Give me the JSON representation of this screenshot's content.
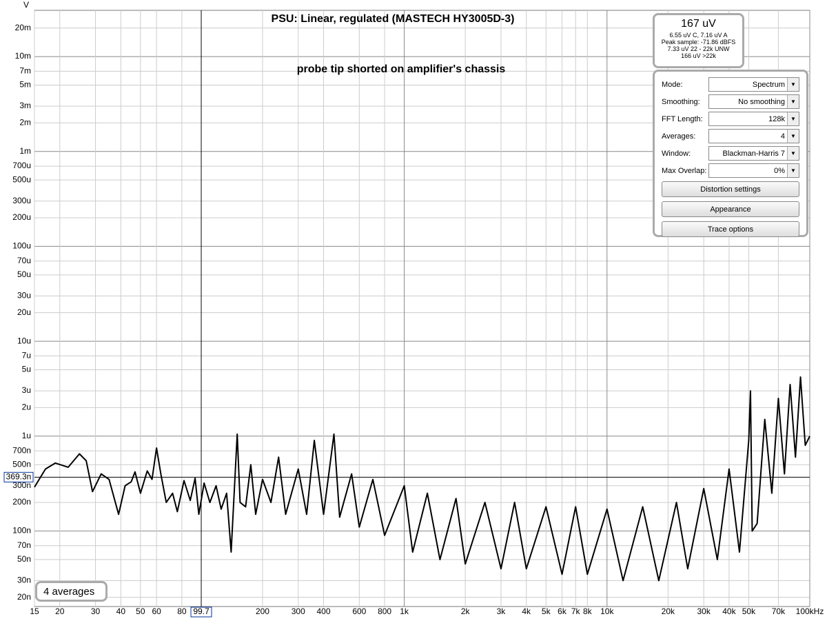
{
  "chart_data": {
    "type": "line",
    "title": "PSU: Linear, regulated (MASTECH HY3005D-3)",
    "annotation": "probe tip shorted on amplifier's chassis",
    "y_axis_label": "V",
    "log_x": true,
    "log_y": true,
    "grid": true,
    "color": "#000000",
    "xlim": [
      15,
      100000
    ],
    "ylim": [
      1.6e-08,
      0.0307
    ],
    "xticks": [
      15,
      20,
      30,
      40,
      50,
      60,
      80,
      200,
      300,
      400,
      600,
      800,
      {
        "value": 1000,
        "label": "1k"
      },
      {
        "value": 2000,
        "label": "2k"
      },
      {
        "value": 3000,
        "label": "3k"
      },
      {
        "value": 4000,
        "label": "4k"
      },
      {
        "value": 5000,
        "label": "5k"
      },
      {
        "value": 6000,
        "label": "6k"
      },
      {
        "value": 7000,
        "label": "7k"
      },
      {
        "value": 8000,
        "label": "8k"
      },
      {
        "value": 10000,
        "label": "10k"
      },
      {
        "value": 20000,
        "label": "20k"
      },
      {
        "value": 30000,
        "label": "30k"
      },
      {
        "value": 40000,
        "label": "40k"
      },
      {
        "value": 50000,
        "label": "50k"
      },
      {
        "value": 70000,
        "label": "70k"
      },
      {
        "value": 100000,
        "label": "100kHz"
      }
    ],
    "yticks": [
      {
        "value": 0.02,
        "label": "20m"
      },
      {
        "value": 0.01,
        "label": "10m"
      },
      {
        "value": 0.007,
        "label": "7m"
      },
      {
        "value": 0.005,
        "label": "5m"
      },
      {
        "value": 0.003,
        "label": "3m"
      },
      {
        "value": 0.002,
        "label": "2m"
      },
      {
        "value": 0.001,
        "label": "1m"
      },
      {
        "value": 0.0007,
        "label": "700u"
      },
      {
        "value": 0.0005,
        "label": "500u"
      },
      {
        "value": 0.0003,
        "label": "300u"
      },
      {
        "value": 0.0002,
        "label": "200u"
      },
      {
        "value": 0.0001,
        "label": "100u"
      },
      {
        "value": 7e-05,
        "label": "70u"
      },
      {
        "value": 5e-05,
        "label": "50u"
      },
      {
        "value": 3e-05,
        "label": "30u"
      },
      {
        "value": 2e-05,
        "label": "20u"
      },
      {
        "value": 1e-05,
        "label": "10u"
      },
      {
        "value": 7e-06,
        "label": "7u"
      },
      {
        "value": 5e-06,
        "label": "5u"
      },
      {
        "value": 3e-06,
        "label": "3u"
      },
      {
        "value": 2e-06,
        "label": "2u"
      },
      {
        "value": 1e-06,
        "label": "1u"
      },
      {
        "value": 7e-07,
        "label": "700n"
      },
      {
        "value": 5e-07,
        "label": "500n"
      },
      {
        "value": 3e-07,
        "label": "300n"
      },
      {
        "value": 2e-07,
        "label": "200n"
      },
      {
        "value": 1e-07,
        "label": "100n"
      },
      {
        "value": 7e-08,
        "label": "70n"
      },
      {
        "value": 5e-08,
        "label": "50n"
      },
      {
        "value": 3e-08,
        "label": "30n"
      },
      {
        "value": 2e-08,
        "label": "20n"
      }
    ],
    "cursor": {
      "x": {
        "value": 99.7,
        "label": "99.7"
      },
      "y": {
        "value": 3.693e-07,
        "label": "369.3n"
      }
    },
    "x": [
      15,
      17,
      19,
      22,
      25,
      27,
      29,
      32,
      35,
      39,
      42,
      45,
      47,
      50,
      54,
      57,
      60,
      63,
      67,
      72,
      76,
      82,
      88,
      93,
      97,
      103,
      110,
      118,
      125,
      133,
      140,
      150,
      155,
      165,
      175,
      185,
      200,
      220,
      240,
      260,
      300,
      330,
      360,
      400,
      450,
      480,
      550,
      600,
      700,
      800,
      1000,
      1100,
      1300,
      1500,
      1800,
      2000,
      2500,
      3000,
      3500,
      4000,
      5000,
      6000,
      7000,
      8000,
      10000,
      12000,
      15000,
      18000,
      22000,
      25000,
      30000,
      35000,
      40000,
      45000,
      50000,
      51000,
      52000,
      55000,
      60000,
      65000,
      70000,
      75000,
      80000,
      85000,
      90000,
      95000,
      100000
    ],
    "values": [
      2.9e-07,
      4.5e-07,
      5.2e-07,
      4.7e-07,
      6.5e-07,
      5.5e-07,
      2.6e-07,
      4e-07,
      3.5e-07,
      1.5e-07,
      3e-07,
      3.3e-07,
      4.2e-07,
      2.5e-07,
      4.3e-07,
      3.5e-07,
      7.5e-07,
      4e-07,
      2e-07,
      2.5e-07,
      1.6e-07,
      3.4e-07,
      2.1e-07,
      3.6e-07,
      1.5e-07,
      3.2e-07,
      2e-07,
      3e-07,
      1.7e-07,
      2.5e-07,
      6e-08,
      1.05e-06,
      2e-07,
      1.8e-07,
      5e-07,
      1.5e-07,
      3.5e-07,
      2e-07,
      6e-07,
      1.5e-07,
      4.5e-07,
      1.5e-07,
      9e-07,
      1.5e-07,
      1.05e-06,
      1.4e-07,
      4e-07,
      1.1e-07,
      3.5e-07,
      9e-08,
      3e-07,
      6e-08,
      2.5e-07,
      5e-08,
      2.2e-07,
      4.5e-08,
      2e-07,
      4e-08,
      2e-07,
      4e-08,
      1.8e-07,
      3.5e-08,
      1.8e-07,
      3.5e-08,
      1.7e-07,
      3e-08,
      1.8e-07,
      3e-08,
      2e-07,
      4e-08,
      2.8e-07,
      5e-08,
      4.5e-07,
      6e-08,
      9e-07,
      3e-06,
      1e-07,
      1.2e-07,
      1.5e-06,
      2.5e-07,
      2.5e-06,
      4e-07,
      3.5e-06,
      6e-07,
      4.2e-06,
      8e-07,
      1e-06
    ]
  },
  "status": {
    "averages": "4 averages"
  },
  "meter": {
    "main": "167 uV",
    "lines": [
      "6.55 uV C, 7.16 uV A",
      "Peak sample: -71.86 dBFS",
      "7.33 uV 22 - 22k UNW",
      "166 uV >22k"
    ]
  },
  "controls": {
    "fields": [
      [
        "Mode:",
        "Spectrum"
      ],
      [
        "Smoothing:",
        "No  smoothing"
      ],
      [
        "FFT Length:",
        "128k"
      ],
      [
        "Averages:",
        "4"
      ],
      [
        "Window:",
        "Blackman-Harris 7"
      ],
      [
        "Max Overlap:",
        "0%"
      ]
    ],
    "buttons": [
      "Distortion settings",
      "Appearance",
      "Trace options"
    ]
  }
}
